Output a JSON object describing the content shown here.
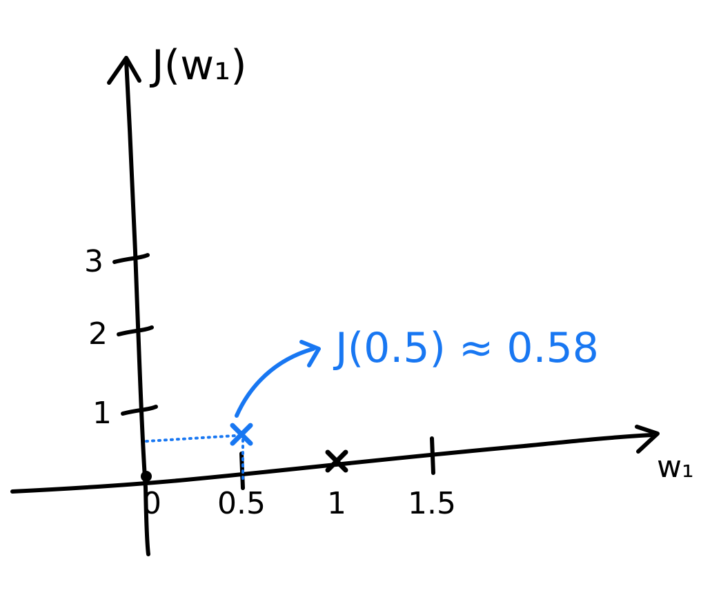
{
  "chart_data": {
    "type": "scatter",
    "xlabel": "w₁",
    "ylabel": "J(w₁)",
    "x_ticks": [
      "0",
      "0.5",
      "1",
      "1.5"
    ],
    "y_ticks": [
      "1",
      "2",
      "3"
    ],
    "xlim": [
      0,
      1.5
    ],
    "ylim": [
      0,
      3
    ],
    "grid": false,
    "points": [
      {
        "x": 0,
        "y": 0,
        "marker": "dot"
      },
      {
        "x": 1,
        "y": 0,
        "marker": "x"
      },
      {
        "x": 0.5,
        "y": 0.58,
        "marker": "x",
        "highlight": true
      }
    ],
    "annotation": {
      "text": "J(0.5) ≈ 0.58",
      "target_x": 0.5,
      "target_y": 0.58
    },
    "colors": {
      "ink": "#000000",
      "highlight": "#1877f2"
    }
  }
}
